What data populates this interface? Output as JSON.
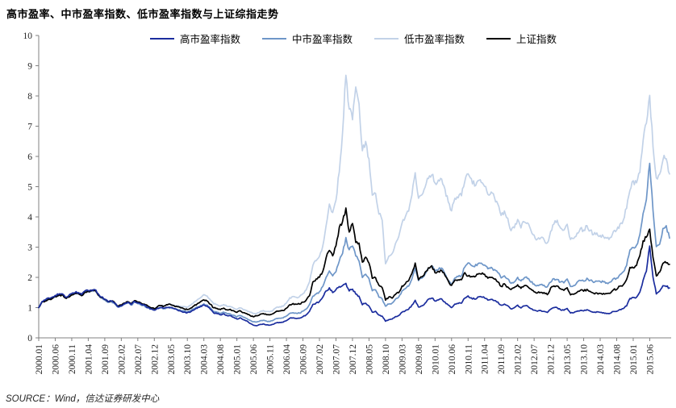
{
  "title": "高市盈率、中市盈率指数、低市盈率指数与上证综指走势",
  "source": "SOURCE：Wind，信达证券研发中心",
  "colors": {
    "axis": "#808080",
    "tick_text": "#262626",
    "background": "#ffffff"
  },
  "chart_data": {
    "type": "line",
    "title": "高市盈率、中市盈率指数、低市盈率指数与上证综指走势",
    "xlabel": "",
    "ylabel": "",
    "ylim": [
      0,
      10
    ],
    "y_ticks": [
      0,
      1,
      2,
      3,
      4,
      5,
      6,
      7,
      8,
      9,
      10
    ],
    "grid": false,
    "legend_position": "top",
    "x_start": "2000.01",
    "x_end": "2015.12",
    "x_frequency": "monthly",
    "x_tick_interval_months": 5,
    "x_tick_labels": [
      "2000.01",
      "2000.06",
      "2000.11",
      "2001.04",
      "2001.09",
      "2002.02",
      "2002.07",
      "2002.12",
      "2003.05",
      "2003.10",
      "2004.03",
      "2004.08",
      "2005.01",
      "2005.06",
      "2005.11",
      "2006.04",
      "2006.09",
      "2007.02",
      "2007.07",
      "2007.12",
      "2008.05",
      "2008.10",
      "2009.03",
      "2009.08",
      "2010.01",
      "2010.06",
      "2010.11",
      "2011.04",
      "2011.09",
      "2012.02",
      "2012.07",
      "2012.12",
      "2013.05",
      "2013.10",
      "2014.03",
      "2014.08",
      "2015.01",
      "2015.06"
    ],
    "series": [
      {
        "name": "高市盈率指数",
        "color": "#1b2d9e",
        "values": [
          1.0,
          1.2,
          1.26,
          1.32,
          1.34,
          1.4,
          1.44,
          1.46,
          1.36,
          1.38,
          1.46,
          1.5,
          1.5,
          1.44,
          1.55,
          1.56,
          1.58,
          1.6,
          1.45,
          1.35,
          1.28,
          1.2,
          1.22,
          1.15,
          1.03,
          1.06,
          1.13,
          1.18,
          1.1,
          1.21,
          1.15,
          1.11,
          1.08,
          1.0,
          0.96,
          0.92,
          0.98,
          1.0,
          0.98,
          1.0,
          1.0,
          0.96,
          0.92,
          0.88,
          0.85,
          0.83,
          0.86,
          0.92,
          0.98,
          1.03,
          1.08,
          1.05,
          0.94,
          0.82,
          0.8,
          0.76,
          0.8,
          0.74,
          0.73,
          0.68,
          0.62,
          0.66,
          0.6,
          0.56,
          0.48,
          0.42,
          0.4,
          0.44,
          0.46,
          0.43,
          0.42,
          0.45,
          0.5,
          0.51,
          0.52,
          0.57,
          0.65,
          0.66,
          0.64,
          0.65,
          0.7,
          0.76,
          0.88,
          1.1,
          1.15,
          1.2,
          1.35,
          1.55,
          1.65,
          1.5,
          1.6,
          1.7,
          1.72,
          1.8,
          1.55,
          1.62,
          1.45,
          1.38,
          1.1,
          1.15,
          1.05,
          0.85,
          0.88,
          0.75,
          0.72,
          0.55,
          0.6,
          0.62,
          0.7,
          0.74,
          0.85,
          0.9,
          0.95,
          1.08,
          1.25,
          1.02,
          1.06,
          1.15,
          1.28,
          1.32,
          1.22,
          1.26,
          1.28,
          1.18,
          1.08,
          1.0,
          1.12,
          1.14,
          1.15,
          1.32,
          1.38,
          1.32,
          1.28,
          1.35,
          1.36,
          1.32,
          1.25,
          1.28,
          1.24,
          1.18,
          1.08,
          1.12,
          1.06,
          0.96,
          1.0,
          1.08,
          0.99,
          1.06,
          1.05,
          0.97,
          0.92,
          0.88,
          0.9,
          0.88,
          0.84,
          0.95,
          1.0,
          0.99,
          0.93,
          0.91,
          0.97,
          0.82,
          0.83,
          0.88,
          0.91,
          0.89,
          0.93,
          0.88,
          0.84,
          0.86,
          0.84,
          0.83,
          0.8,
          0.81,
          0.87,
          0.88,
          0.94,
          0.97,
          1.06,
          1.3,
          1.34,
          1.34,
          1.52,
          1.9,
          2.2,
          3.05,
          2.0,
          1.45,
          1.55,
          1.72,
          1.7,
          1.65
        ]
      },
      {
        "name": "中市盈率指数",
        "color": "#6e96c8",
        "values": [
          1.0,
          1.19,
          1.24,
          1.3,
          1.32,
          1.38,
          1.42,
          1.44,
          1.34,
          1.36,
          1.44,
          1.48,
          1.48,
          1.42,
          1.53,
          1.54,
          1.56,
          1.58,
          1.43,
          1.33,
          1.26,
          1.18,
          1.2,
          1.13,
          1.01,
          1.04,
          1.11,
          1.16,
          1.08,
          1.19,
          1.13,
          1.09,
          1.06,
          0.99,
          0.95,
          0.91,
          0.97,
          0.99,
          0.97,
          1.0,
          1.0,
          0.96,
          0.93,
          0.9,
          0.88,
          0.86,
          0.9,
          0.96,
          1.02,
          1.07,
          1.12,
          1.09,
          0.98,
          0.87,
          0.85,
          0.81,
          0.85,
          0.8,
          0.79,
          0.75,
          0.7,
          0.74,
          0.68,
          0.64,
          0.58,
          0.53,
          0.52,
          0.56,
          0.58,
          0.55,
          0.54,
          0.58,
          0.64,
          0.65,
          0.66,
          0.72,
          0.81,
          0.83,
          0.81,
          0.82,
          0.88,
          0.95,
          1.1,
          1.38,
          1.45,
          1.52,
          1.7,
          2.0,
          2.2,
          2.05,
          2.2,
          2.55,
          2.8,
          3.3,
          2.9,
          3.05,
          2.7,
          2.55,
          2.0,
          2.1,
          1.95,
          1.55,
          1.58,
          1.35,
          1.28,
          1.05,
          1.12,
          1.15,
          1.28,
          1.35,
          1.55,
          1.62,
          1.72,
          1.95,
          2.3,
          1.9,
          1.98,
          2.12,
          2.32,
          2.38,
          2.2,
          2.26,
          2.3,
          2.1,
          1.9,
          1.78,
          1.98,
          2.02,
          2.05,
          2.35,
          2.48,
          2.4,
          2.35,
          2.45,
          2.46,
          2.4,
          2.28,
          2.32,
          2.26,
          2.16,
          1.98,
          2.06,
          1.96,
          1.8,
          1.86,
          2.0,
          1.88,
          1.99,
          1.97,
          1.85,
          1.78,
          1.73,
          1.76,
          1.74,
          1.68,
          1.85,
          1.95,
          1.93,
          1.85,
          1.83,
          1.95,
          1.7,
          1.73,
          1.83,
          1.9,
          1.88,
          1.97,
          1.9,
          1.84,
          1.88,
          1.86,
          1.85,
          1.82,
          1.84,
          1.95,
          1.98,
          2.1,
          2.18,
          2.4,
          2.9,
          3.0,
          3.05,
          3.4,
          4.1,
          4.6,
          5.8,
          4.2,
          3.0,
          3.1,
          3.6,
          3.7,
          3.3
        ]
      },
      {
        "name": "低市盈率指数",
        "color": "#c2d2e8",
        "values": [
          1.0,
          1.17,
          1.22,
          1.28,
          1.3,
          1.36,
          1.4,
          1.42,
          1.32,
          1.34,
          1.42,
          1.46,
          1.46,
          1.4,
          1.51,
          1.52,
          1.54,
          1.56,
          1.41,
          1.32,
          1.25,
          1.17,
          1.19,
          1.12,
          1.02,
          1.05,
          1.12,
          1.17,
          1.1,
          1.21,
          1.15,
          1.12,
          1.09,
          1.03,
          1.0,
          0.97,
          1.04,
          1.07,
          1.06,
          1.1,
          1.11,
          1.08,
          1.06,
          1.04,
          1.03,
          1.02,
          1.08,
          1.18,
          1.26,
          1.33,
          1.42,
          1.38,
          1.25,
          1.12,
          1.1,
          1.05,
          1.1,
          1.04,
          1.03,
          0.99,
          0.94,
          0.99,
          0.93,
          0.9,
          0.85,
          0.81,
          0.8,
          0.86,
          0.9,
          0.87,
          0.86,
          0.92,
          1.01,
          1.03,
          1.05,
          1.15,
          1.32,
          1.36,
          1.34,
          1.36,
          1.46,
          1.58,
          1.85,
          2.4,
          2.55,
          2.7,
          3.05,
          3.7,
          4.4,
          4.15,
          4.55,
          5.5,
          6.8,
          8.7,
          7.6,
          7.2,
          8.3,
          7.7,
          6.2,
          6.5,
          5.9,
          4.7,
          4.8,
          4.1,
          3.9,
          2.45,
          2.7,
          2.8,
          3.1,
          3.35,
          3.8,
          4.0,
          4.2,
          4.7,
          5.45,
          4.6,
          4.75,
          5.0,
          5.3,
          5.4,
          5.1,
          5.2,
          5.25,
          4.9,
          4.5,
          4.2,
          4.6,
          4.65,
          4.7,
          5.2,
          5.45,
          5.25,
          5.05,
          5.2,
          5.15,
          5.0,
          4.75,
          4.8,
          4.65,
          4.45,
          4.05,
          4.2,
          3.95,
          3.55,
          3.65,
          3.9,
          3.65,
          3.85,
          3.8,
          3.55,
          3.4,
          3.25,
          3.3,
          3.25,
          3.15,
          3.5,
          3.75,
          3.9,
          3.65,
          3.55,
          3.75,
          3.25,
          3.3,
          3.45,
          3.6,
          3.55,
          3.7,
          3.55,
          3.4,
          3.45,
          3.4,
          3.35,
          3.28,
          3.3,
          3.5,
          3.55,
          3.75,
          3.9,
          4.3,
          4.9,
          5.2,
          5.1,
          5.5,
          6.5,
          7.1,
          8.0,
          6.3,
          5.3,
          5.4,
          5.9,
          5.95,
          5.4
        ]
      },
      {
        "name": "上证指数",
        "color": "#000000",
        "values": [
          1.0,
          1.18,
          1.22,
          1.28,
          1.3,
          1.36,
          1.4,
          1.42,
          1.32,
          1.35,
          1.43,
          1.46,
          1.47,
          1.4,
          1.52,
          1.53,
          1.55,
          1.57,
          1.42,
          1.33,
          1.27,
          1.2,
          1.22,
          1.16,
          1.05,
          1.08,
          1.15,
          1.2,
          1.12,
          1.24,
          1.18,
          1.15,
          1.12,
          1.05,
          1.0,
          0.96,
          1.04,
          1.06,
          1.05,
          1.09,
          1.1,
          1.06,
          1.03,
          0.99,
          0.96,
          0.94,
          0.98,
          1.05,
          1.13,
          1.19,
          1.25,
          1.22,
          1.11,
          0.99,
          0.97,
          0.93,
          0.99,
          0.93,
          0.94,
          0.89,
          0.84,
          0.9,
          0.83,
          0.8,
          0.74,
          0.7,
          0.73,
          0.77,
          0.8,
          0.77,
          0.76,
          0.8,
          0.88,
          0.89,
          0.9,
          0.98,
          1.1,
          1.13,
          1.11,
          1.12,
          1.18,
          1.25,
          1.4,
          1.85,
          1.95,
          2.0,
          2.2,
          2.65,
          2.9,
          2.7,
          3.05,
          3.65,
          3.85,
          4.28,
          3.52,
          3.78,
          3.16,
          3.14,
          2.51,
          2.67,
          2.48,
          1.98,
          2.0,
          1.73,
          1.66,
          1.25,
          1.35,
          1.31,
          1.44,
          1.5,
          1.71,
          1.79,
          1.9,
          2.14,
          2.46,
          1.93,
          2.01,
          2.16,
          2.31,
          2.37,
          2.16,
          2.2,
          2.24,
          2.07,
          1.87,
          1.73,
          1.9,
          1.91,
          1.92,
          2.15,
          2.04,
          2.03,
          2.01,
          2.1,
          2.11,
          2.1,
          1.98,
          1.99,
          1.95,
          1.85,
          1.7,
          1.78,
          1.68,
          1.59,
          1.66,
          1.75,
          1.63,
          1.73,
          1.71,
          1.61,
          1.52,
          1.48,
          1.51,
          1.49,
          1.43,
          1.64,
          1.72,
          1.71,
          1.62,
          1.57,
          1.66,
          1.43,
          1.44,
          1.51,
          1.57,
          1.55,
          1.6,
          1.53,
          1.47,
          1.48,
          1.47,
          1.46,
          1.47,
          1.48,
          1.59,
          1.6,
          1.71,
          1.75,
          1.94,
          2.34,
          2.32,
          2.39,
          2.71,
          3.21,
          3.33,
          3.6,
          2.65,
          2.05,
          2.18,
          2.45,
          2.49,
          2.42
        ]
      }
    ]
  }
}
